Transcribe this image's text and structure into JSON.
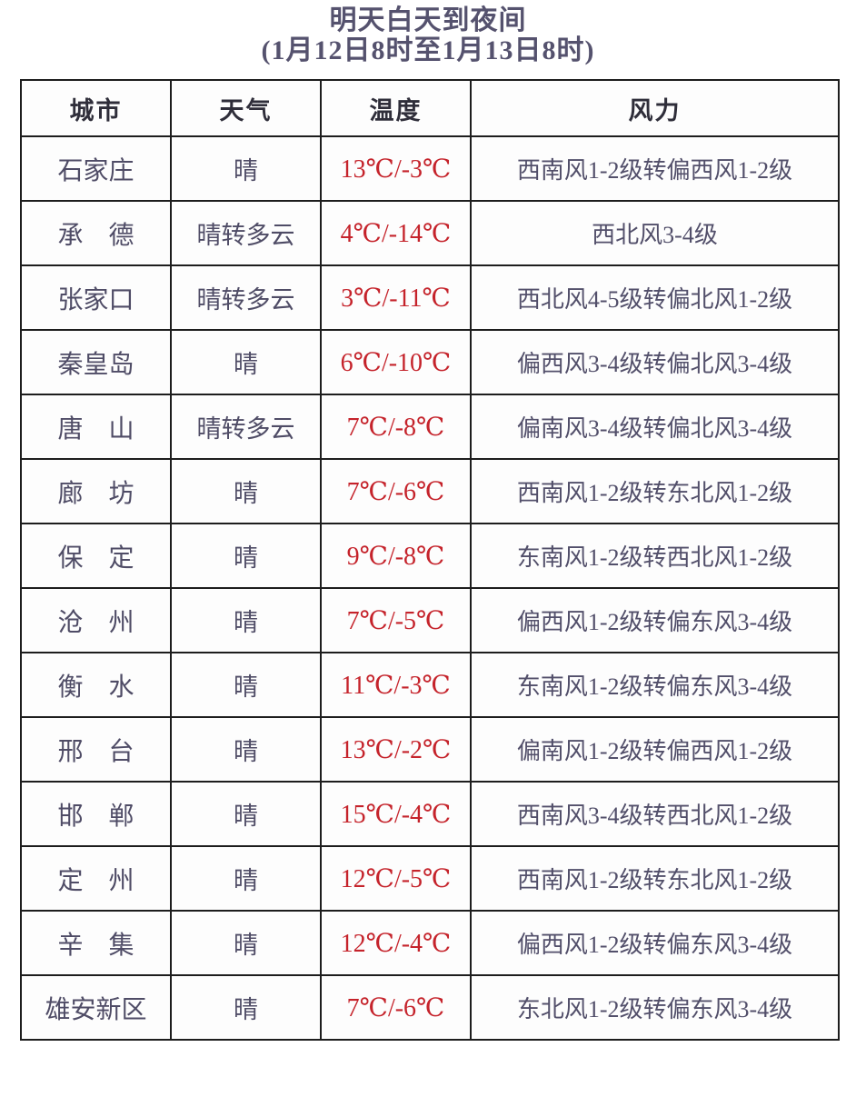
{
  "page": {
    "title": "明天白天到夜间",
    "subtitle": "(1月12日8时至1月13日8时)"
  },
  "colors": {
    "title_ink": "#55526e",
    "header_ink": "#2f2e3a",
    "body_ink": "#524f6a",
    "temperature_red": "#c5232b",
    "table_border": "#1d1d1d",
    "background": "#ffffff"
  },
  "table": {
    "headers": [
      "城市",
      "天气",
      "温度",
      "风力"
    ],
    "rows": [
      {
        "city": "石家庄",
        "weather": "晴",
        "temperature": "13℃/-3℃",
        "wind": "西南风1-2级转偏西风1-2级"
      },
      {
        "city": "承　德",
        "weather": "晴转多云",
        "temperature": "4℃/-14℃",
        "wind": "西北风3-4级"
      },
      {
        "city": "张家口",
        "weather": "晴转多云",
        "temperature": "3℃/-11℃",
        "wind": "西北风4-5级转偏北风1-2级"
      },
      {
        "city": "秦皇岛",
        "weather": "晴",
        "temperature": "6℃/-10℃",
        "wind": "偏西风3-4级转偏北风3-4级"
      },
      {
        "city": "唐　山",
        "weather": "晴转多云",
        "temperature": "7℃/-8℃",
        "wind": "偏南风3-4级转偏北风3-4级"
      },
      {
        "city": "廊　坊",
        "weather": "晴",
        "temperature": "7℃/-6℃",
        "wind": "西南风1-2级转东北风1-2级"
      },
      {
        "city": "保　定",
        "weather": "晴",
        "temperature": "9℃/-8℃",
        "wind": "东南风1-2级转西北风1-2级"
      },
      {
        "city": "沧　州",
        "weather": "晴",
        "temperature": "7℃/-5℃",
        "wind": "偏西风1-2级转偏东风3-4级"
      },
      {
        "city": "衡　水",
        "weather": "晴",
        "temperature": "11℃/-3℃",
        "wind": "东南风1-2级转偏东风3-4级"
      },
      {
        "city": "邢　台",
        "weather": "晴",
        "temperature": "13℃/-2℃",
        "wind": "偏南风1-2级转偏西风1-2级"
      },
      {
        "city": "邯　郸",
        "weather": "晴",
        "temperature": "15℃/-4℃",
        "wind": "西南风3-4级转西北风1-2级"
      },
      {
        "city": "定　州",
        "weather": "晴",
        "temperature": "12℃/-5℃",
        "wind": "西南风1-2级转东北风1-2级"
      },
      {
        "city": "辛　集",
        "weather": "晴",
        "temperature": "12℃/-4℃",
        "wind": "偏西风1-2级转偏东风3-4级"
      },
      {
        "city": "雄安新区",
        "weather": "晴",
        "temperature": "7℃/-6℃",
        "wind": "东北风1-2级转偏东风3-4级"
      }
    ]
  },
  "chart_data": {
    "type": "table",
    "title": "明天白天到夜间",
    "subtitle": "(1月12日8时至1月13日8时)",
    "columns": [
      "城市",
      "天气",
      "温度",
      "风力"
    ],
    "rows": [
      [
        "石家庄",
        "晴",
        "13℃/-3℃",
        "西南风1-2级转偏西风1-2级"
      ],
      [
        "承德",
        "晴转多云",
        "4℃/-14℃",
        "西北风3-4级"
      ],
      [
        "张家口",
        "晴转多云",
        "3℃/-11℃",
        "西北风4-5级转偏北风1-2级"
      ],
      [
        "秦皇岛",
        "晴",
        "6℃/-10℃",
        "偏西风3-4级转偏北风3-4级"
      ],
      [
        "唐山",
        "晴转多云",
        "7℃/-8℃",
        "偏南风3-4级转偏北风3-4级"
      ],
      [
        "廊坊",
        "晴",
        "7℃/-6℃",
        "西南风1-2级转东北风1-2级"
      ],
      [
        "保定",
        "晴",
        "9℃/-8℃",
        "东南风1-2级转西北风1-2级"
      ],
      [
        "沧州",
        "晴",
        "7℃/-5℃",
        "偏西风1-2级转偏东风3-4级"
      ],
      [
        "衡水",
        "晴",
        "11℃/-3℃",
        "东南风1-2级转偏东风3-4级"
      ],
      [
        "邢台",
        "晴",
        "13℃/-2℃",
        "偏南风1-2级转偏西风1-2级"
      ],
      [
        "邯郸",
        "晴",
        "15℃/-4℃",
        "西南风3-4级转西北风1-2级"
      ],
      [
        "定州",
        "晴",
        "12℃/-5℃",
        "西南风1-2级转东北风1-2级"
      ],
      [
        "辛集",
        "晴",
        "12℃/-4℃",
        "偏西风1-2级转偏东风3-4级"
      ],
      [
        "雄安新区",
        "晴",
        "7℃/-6℃",
        "东北风1-2级转偏东风3-4级"
      ]
    ],
    "high_temps_c": [
      13,
      4,
      3,
      6,
      7,
      7,
      9,
      7,
      11,
      13,
      15,
      12,
      12,
      7
    ],
    "low_temps_c": [
      -3,
      -14,
      -11,
      -10,
      -8,
      -6,
      -8,
      -5,
      -3,
      -2,
      -4,
      -5,
      -4,
      -6
    ]
  }
}
